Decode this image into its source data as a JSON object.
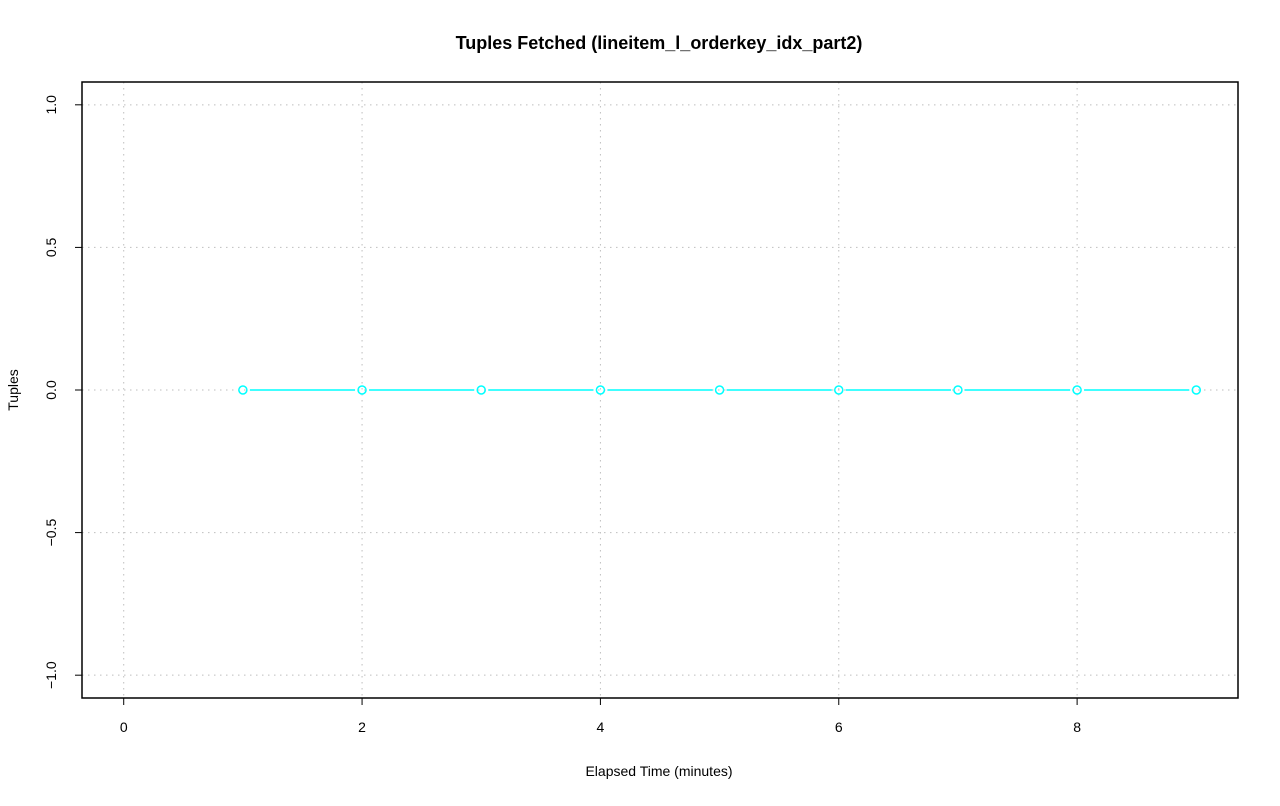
{
  "chart_data": {
    "type": "line",
    "title": "Tuples Fetched (lineitem_l_orderkey_idx_part2)",
    "xlabel": "Elapsed Time (minutes)",
    "ylabel": "Tuples",
    "x": [
      1,
      2,
      3,
      4,
      5,
      6,
      7,
      8,
      9
    ],
    "series": [
      {
        "values": [
          0,
          0,
          0,
          0,
          0,
          0,
          0,
          0,
          0
        ],
        "color": "#00ffff"
      }
    ],
    "xlim": [
      -0.35,
      9.35
    ],
    "ylim": [
      -1.08,
      1.08
    ],
    "xticks": [
      0,
      2,
      4,
      6,
      8
    ],
    "xtick_labels": [
      "0",
      "2",
      "4",
      "6",
      "8"
    ],
    "yticks": [
      -1.0,
      -0.5,
      0.0,
      0.5,
      1.0
    ],
    "ytick_labels": [
      "−1.0",
      "−0.5",
      "0.0",
      "0.5",
      "1.0"
    ],
    "grid": true,
    "grid_color": "#bebebe",
    "markers": "open-circle"
  }
}
